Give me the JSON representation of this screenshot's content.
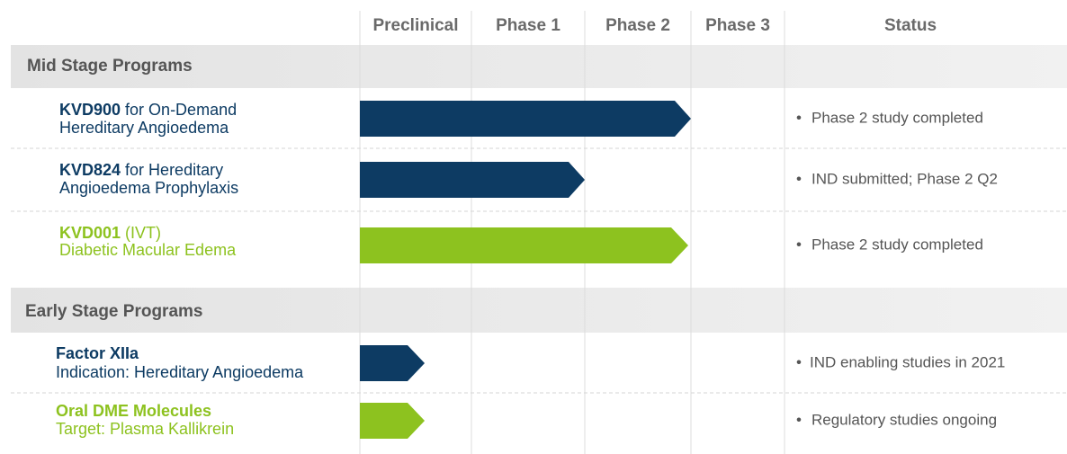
{
  "columns": [
    "Preclinical",
    "Phase 1",
    "Phase 2",
    "Phase 3",
    "Status"
  ],
  "sections": [
    {
      "title": "Mid Stage Programs",
      "programs": [
        {
          "code": "KVD900",
          "title": "for On-Demand",
          "subtitle": "Hereditary Angioedema",
          "status": "Phase 2 study completed"
        },
        {
          "code": "KVD824",
          "title": "for Hereditary",
          "subtitle": "Angioedema Prophylaxis",
          "status": "IND submitted; Phase 2 Q2"
        },
        {
          "code": "KVD001",
          "title": "(IVT)",
          "subtitle": "Diabetic Macular Edema",
          "status": "Phase 2 study completed"
        }
      ]
    },
    {
      "title": "Early Stage Programs",
      "programs": [
        {
          "code": "Factor XIIa",
          "subtitle": "Indication: Hereditary Angioedema",
          "status": "IND enabling studies in 2021"
        },
        {
          "code": "Oral DME Molecules",
          "subtitle": "Target: Plasma Kallikrein",
          "status": "Regulatory studies ongoing"
        }
      ]
    }
  ]
}
